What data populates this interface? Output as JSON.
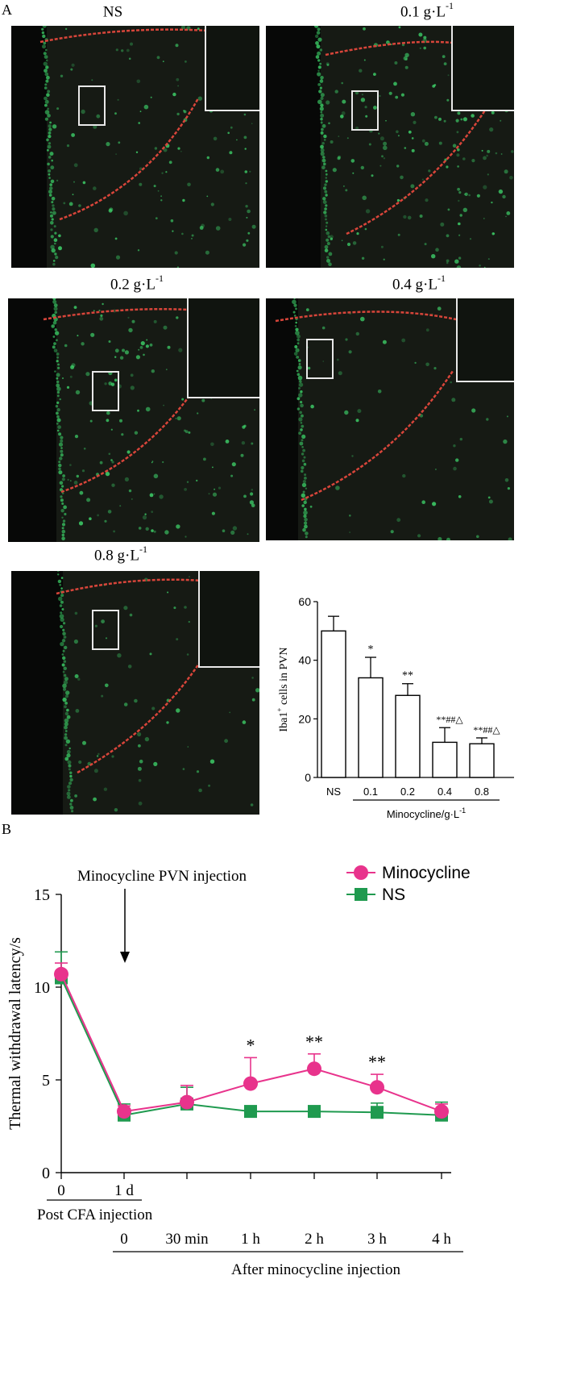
{
  "panel_a": {
    "letter": "A",
    "micrographs": [
      {
        "key": "ns",
        "label": "NS",
        "unit_exp": ""
      },
      {
        "key": "c01",
        "label": "0.1 g·L",
        "unit_exp": "-1"
      },
      {
        "key": "c02",
        "label": "0.2 g·L",
        "unit_exp": "-1"
      },
      {
        "key": "c04",
        "label": "0.4 g·L",
        "unit_exp": "-1"
      },
      {
        "key": "c08",
        "label": "0.8 g·L",
        "unit_exp": "-1"
      }
    ]
  },
  "panel_b": {
    "letter": "B"
  },
  "colors": {
    "minocycline": "#e8338c",
    "ns": "#1f9a4f",
    "tissue": "#161a14",
    "cells": "#3ed36a",
    "boundary": "#d8453a"
  },
  "chart_data": [
    {
      "type": "bar",
      "categories": [
        "NS",
        "0.1",
        "0.2",
        "0.4",
        "0.8"
      ],
      "values": [
        50,
        34,
        28,
        12,
        11.5
      ],
      "errors": [
        5,
        7,
        4,
        5,
        2
      ],
      "significance": [
        "",
        "*",
        "**",
        "**##△",
        "**##△"
      ],
      "ylabel": "Iba1+ cells in PVN",
      "ylabel_main": "Iba1",
      "ylabel_sup": "+",
      "ylabel_rest": " cells in PVN",
      "xgroup_label": "Minocycline/g·L",
      "xgroup_sup": "-1",
      "ylim": [
        0,
        60
      ],
      "yticks": [
        0,
        20,
        40,
        60
      ]
    },
    {
      "type": "line",
      "ylabel": "Thermal withdrawal latency/s",
      "ylim": [
        0,
        15
      ],
      "yticks": [
        0,
        5,
        10,
        15
      ],
      "x_tick_labels_cfa": [
        "0",
        "1 d"
      ],
      "x_group_cfa": "Post CFA injection",
      "x_tick_labels_mino": [
        "0",
        "30 min",
        "1 h",
        "2 h",
        "3 h",
        "4 h"
      ],
      "x_group_mino": "After minocycline injection",
      "annotation": "Minocycline PVN injection",
      "series": [
        {
          "name": "Minocycline",
          "marker": "circle",
          "values": [
            10.7,
            3.3,
            3.8,
            4.8,
            5.6,
            4.6,
            3.3
          ],
          "errors": [
            0.6,
            0.3,
            0.9,
            1.4,
            0.8,
            0.7,
            0.4
          ]
        },
        {
          "name": "NS",
          "marker": "square",
          "values": [
            10.5,
            3.1,
            3.7,
            3.3,
            3.3,
            3.25,
            3.1
          ],
          "errors": [
            1.4,
            0.6,
            0.9,
            0.3,
            0.3,
            0.5,
            0.7
          ]
        }
      ],
      "significance": [
        "",
        "",
        "",
        "*",
        "**",
        "**",
        ""
      ]
    }
  ]
}
